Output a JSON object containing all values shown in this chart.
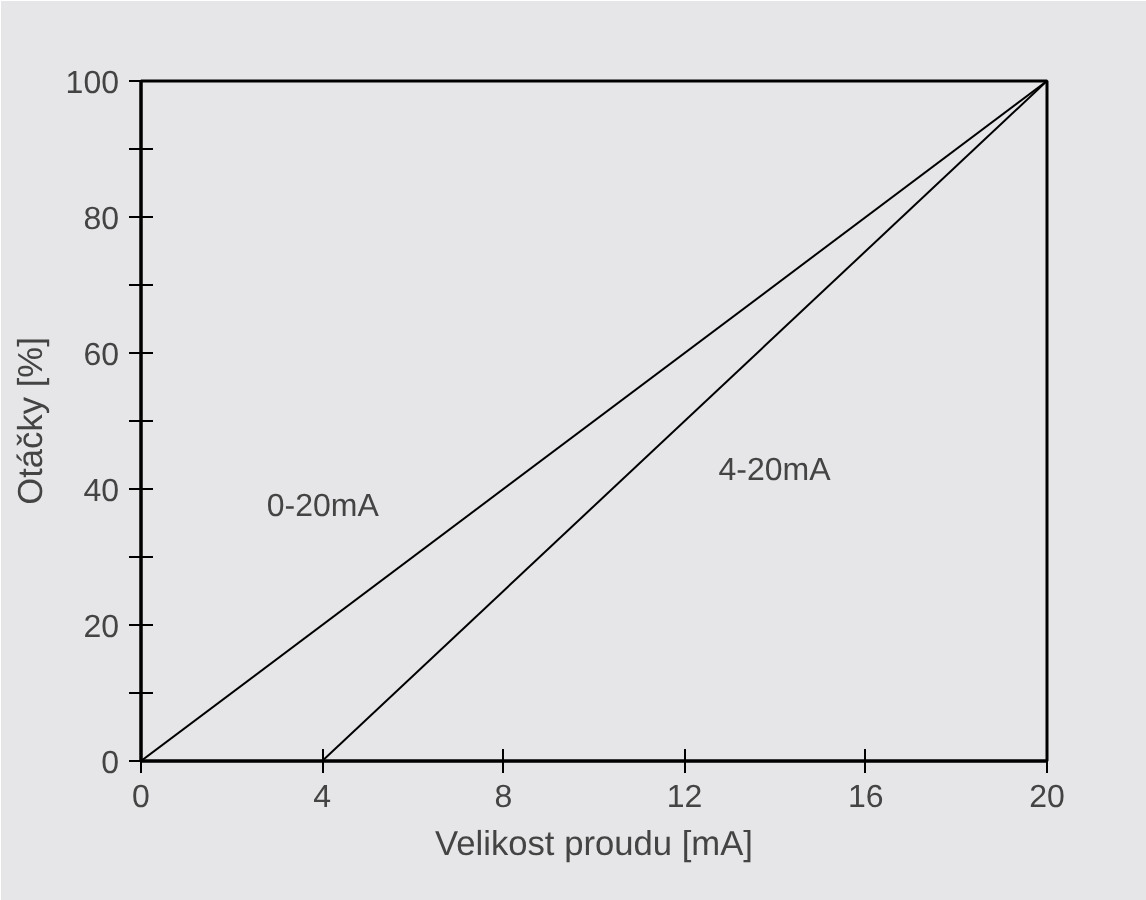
{
  "chart_data": {
    "type": "line",
    "xlabel": "Velikost proudu [mA]",
    "ylabel": "Otáčky [%]",
    "series": [
      {
        "name": "0-20mA",
        "color": "#000000",
        "x": [
          0,
          20
        ],
        "values": [
          0,
          100
        ]
      },
      {
        "name": "4-20mA",
        "color": "#000000",
        "x": [
          4,
          20
        ],
        "values": [
          0,
          100
        ]
      }
    ],
    "xlim": [
      0,
      20
    ],
    "ylim": [
      0,
      100
    ],
    "xticks": [
      0,
      4,
      8,
      12,
      16,
      20
    ],
    "yticks": [
      0,
      {
        "value": 10,
        "label": null
      },
      20,
      {
        "value": 30,
        "label": null
      },
      40,
      {
        "value": 50,
        "label": null
      },
      60,
      {
        "value": 70,
        "label": null
      },
      80,
      {
        "value": 90,
        "label": null
      },
      100
    ],
    "grid": false
  }
}
